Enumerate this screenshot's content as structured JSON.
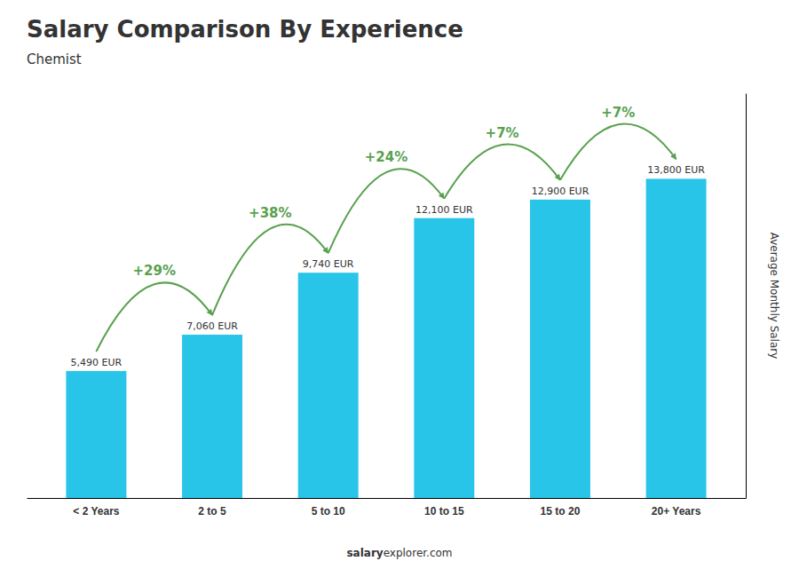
{
  "chart_data": {
    "type": "bar",
    "title": "Salary Comparison By Experience",
    "subtitle": "Chemist",
    "categories": [
      "< 2 Years",
      "2 to 5",
      "5 to 10",
      "10 to 15",
      "15 to 20",
      "20+ Years"
    ],
    "values": [
      5490,
      7060,
      9740,
      12100,
      12900,
      13800
    ],
    "value_labels": [
      "5,490 EUR",
      "7,060 EUR",
      "9,740 EUR",
      "12,100 EUR",
      "12,900 EUR",
      "13,800 EUR"
    ],
    "data_labels": true,
    "color": "#29c5e8",
    "ylabel": "Average Monthly Salary",
    "ylim": [
      0,
      17500
    ],
    "yticks": [],
    "tick_labels": "x",
    "annotations": [
      "+29%",
      "+38%",
      "+24%",
      "+7%",
      "+7%"
    ],
    "footer": [
      "salary",
      "explorer.com"
    ]
  }
}
